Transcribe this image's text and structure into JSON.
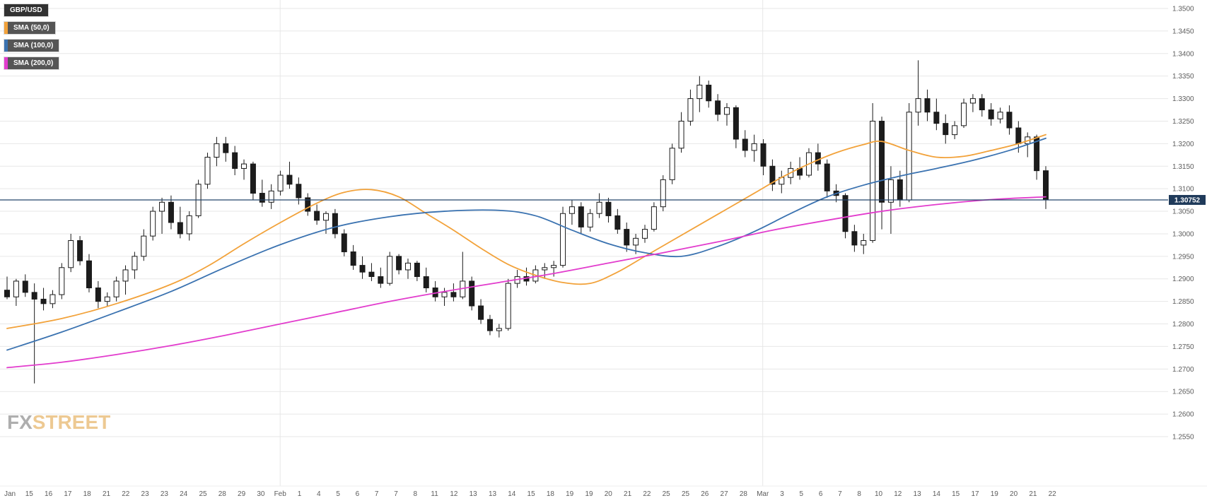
{
  "legend": {
    "instrument": "GBP/USD",
    "overlays": [
      {
        "label": "SMA (50,0)",
        "color": "#f2a23a"
      },
      {
        "label": "SMA (100,0)",
        "color": "#3a72b0"
      },
      {
        "label": "SMA (200,0)",
        "color": "#e23ccd"
      }
    ]
  },
  "watermark": {
    "fx": "FX",
    "street": "STREET"
  },
  "chart_data": {
    "type": "candlestick",
    "title": "GBP/USD daily candles with SMA(50), SMA(100), SMA(200)",
    "pair": "GBP/USD",
    "current_price": "1.30752",
    "price_line_color": "#24466b",
    "price_label_bg": "#1f3a5a",
    "grid_color": "#e7e7e7",
    "axis_text_color": "#5c5c5c",
    "up_color": "#ffffff",
    "down_color": "#1c1c1c",
    "candle_stroke": "#1a1a1a",
    "y_axis": {
      "min": 1.255,
      "max": 1.35,
      "tick_step": 0.005,
      "tick_labels": [
        "1.3500",
        "1.3450",
        "1.3400",
        "1.3350",
        "1.3300",
        "1.3250",
        "1.3200",
        "1.3150",
        "1.3100",
        "1.3050",
        "1.3000",
        "1.2950",
        "1.2900",
        "1.2850",
        "1.2800",
        "1.2750",
        "1.2700",
        "1.2650",
        "1.2600",
        "1.2550"
      ]
    },
    "x_axis": {
      "labels": [
        "Jan",
        "15",
        "16",
        "17",
        "18",
        "21",
        "22",
        "23",
        "23",
        "24",
        "25",
        "28",
        "29",
        "30",
        "Feb",
        "1",
        "4",
        "5",
        "6",
        "7",
        "7",
        "8",
        "11",
        "12",
        "13",
        "13",
        "14",
        "15",
        "18",
        "19",
        "19",
        "20",
        "21",
        "22",
        "25",
        "25",
        "26",
        "27",
        "28",
        "Mar",
        "3",
        "5",
        "6",
        "7",
        "8",
        "10",
        "12",
        "13",
        "14",
        "15",
        "17",
        "19",
        "20",
        "21",
        "22"
      ],
      "month_grid_indices": [
        14,
        39
      ]
    },
    "candles": [
      [
        1.2875,
        1.2905,
        1.2855,
        1.286
      ],
      [
        1.286,
        1.29,
        1.284,
        1.2895
      ],
      [
        1.2895,
        1.291,
        1.286,
        1.287
      ],
      [
        1.287,
        1.289,
        1.2668,
        1.2855
      ],
      [
        1.2855,
        1.288,
        1.283,
        1.2845
      ],
      [
        1.2845,
        1.2875,
        1.2835,
        1.2865
      ],
      [
        1.2865,
        1.2935,
        1.2855,
        1.2925
      ],
      [
        1.2925,
        1.3,
        1.2915,
        1.2985
      ],
      [
        1.2985,
        1.2995,
        1.293,
        1.294
      ],
      [
        1.294,
        1.2955,
        1.287,
        1.288
      ],
      [
        1.288,
        1.2895,
        1.2835,
        1.285
      ],
      [
        1.285,
        1.287,
        1.284,
        1.286
      ],
      [
        1.286,
        1.2905,
        1.285,
        1.2895
      ],
      [
        1.2895,
        1.293,
        1.2865,
        1.292
      ],
      [
        1.292,
        1.296,
        1.29,
        1.295
      ],
      [
        1.295,
        1.301,
        1.294,
        1.2995
      ],
      [
        1.2995,
        1.306,
        1.2985,
        1.305
      ],
      [
        1.305,
        1.308,
        1.3,
        1.307
      ],
      [
        1.307,
        1.3085,
        1.301,
        1.3025
      ],
      [
        1.3025,
        1.306,
        1.299,
        1.3
      ],
      [
        1.3,
        1.305,
        1.2985,
        1.304
      ],
      [
        1.304,
        1.312,
        1.3035,
        1.311
      ],
      [
        1.311,
        1.318,
        1.31,
        1.317
      ],
      [
        1.317,
        1.3215,
        1.315,
        1.32
      ],
      [
        1.32,
        1.3215,
        1.316,
        1.318
      ],
      [
        1.318,
        1.3195,
        1.313,
        1.3145
      ],
      [
        1.3145,
        1.3165,
        1.312,
        1.3155
      ],
      [
        1.3155,
        1.316,
        1.3075,
        1.309
      ],
      [
        1.309,
        1.312,
        1.306,
        1.307
      ],
      [
        1.307,
        1.311,
        1.3055,
        1.3095
      ],
      [
        1.3095,
        1.314,
        1.3085,
        1.313
      ],
      [
        1.313,
        1.316,
        1.31,
        1.311
      ],
      [
        1.311,
        1.3125,
        1.3065,
        1.308
      ],
      [
        1.308,
        1.309,
        1.304,
        1.305
      ],
      [
        1.305,
        1.3065,
        1.302,
        1.303
      ],
      [
        1.303,
        1.305,
        1.3,
        1.3045
      ],
      [
        1.3045,
        1.3055,
        1.299,
        1.3
      ],
      [
        1.3,
        1.301,
        1.295,
        1.296
      ],
      [
        1.296,
        1.2975,
        1.292,
        1.293
      ],
      [
        1.293,
        1.295,
        1.29,
        1.2915
      ],
      [
        1.2915,
        1.2935,
        1.2895,
        1.2905
      ],
      [
        1.2905,
        1.2925,
        1.288,
        1.289
      ],
      [
        1.289,
        1.296,
        1.2885,
        1.295
      ],
      [
        1.295,
        1.2955,
        1.291,
        1.292
      ],
      [
        1.292,
        1.2945,
        1.29,
        1.2935
      ],
      [
        1.2935,
        1.294,
        1.2895,
        1.2905
      ],
      [
        1.2905,
        1.2925,
        1.287,
        1.288
      ],
      [
        1.288,
        1.2895,
        1.285,
        1.286
      ],
      [
        1.286,
        1.288,
        1.284,
        1.287
      ],
      [
        1.287,
        1.289,
        1.285,
        1.286
      ],
      [
        1.286,
        1.296,
        1.2855,
        1.2895
      ],
      [
        1.2895,
        1.2905,
        1.283,
        1.284
      ],
      [
        1.284,
        1.2855,
        1.28,
        1.281
      ],
      [
        1.281,
        1.282,
        1.2775,
        1.2785
      ],
      [
        1.2785,
        1.28,
        1.277,
        1.279
      ],
      [
        1.279,
        1.29,
        1.2785,
        1.289
      ],
      [
        1.289,
        1.292,
        1.288,
        1.2905
      ],
      [
        1.2905,
        1.2925,
        1.2885,
        1.2895
      ],
      [
        1.2895,
        1.293,
        1.289,
        1.292
      ],
      [
        1.292,
        1.2935,
        1.29,
        1.2925
      ],
      [
        1.2925,
        1.294,
        1.2905,
        1.293
      ],
      [
        1.293,
        1.306,
        1.2925,
        1.3045
      ],
      [
        1.3045,
        1.3075,
        1.302,
        1.306
      ],
      [
        1.306,
        1.307,
        1.3,
        1.3015
      ],
      [
        1.3015,
        1.3055,
        1.3005,
        1.3045
      ],
      [
        1.3045,
        1.309,
        1.3035,
        1.307
      ],
      [
        1.307,
        1.308,
        1.3025,
        1.304
      ],
      [
        1.304,
        1.3055,
        1.3,
        1.301
      ],
      [
        1.301,
        1.3025,
        1.296,
        1.2975
      ],
      [
        1.2975,
        1.3,
        1.2955,
        1.299
      ],
      [
        1.299,
        1.302,
        1.298,
        1.301
      ],
      [
        1.301,
        1.307,
        1.3005,
        1.306
      ],
      [
        1.306,
        1.313,
        1.305,
        1.312
      ],
      [
        1.312,
        1.32,
        1.311,
        1.319
      ],
      [
        1.319,
        1.327,
        1.318,
        1.325
      ],
      [
        1.325,
        1.332,
        1.324,
        1.33
      ],
      [
        1.33,
        1.335,
        1.327,
        1.333
      ],
      [
        1.333,
        1.334,
        1.328,
        1.3295
      ],
      [
        1.3295,
        1.331,
        1.325,
        1.3265
      ],
      [
        1.3265,
        1.329,
        1.324,
        1.328
      ],
      [
        1.328,
        1.3285,
        1.319,
        1.321
      ],
      [
        1.321,
        1.323,
        1.317,
        1.3185
      ],
      [
        1.3185,
        1.322,
        1.316,
        1.32
      ],
      [
        1.32,
        1.321,
        1.313,
        1.315
      ],
      [
        1.315,
        1.3165,
        1.3095,
        1.311
      ],
      [
        1.311,
        1.314,
        1.309,
        1.3125
      ],
      [
        1.3125,
        1.316,
        1.311,
        1.3145
      ],
      [
        1.3145,
        1.317,
        1.312,
        1.313
      ],
      [
        1.313,
        1.319,
        1.3125,
        1.318
      ],
      [
        1.318,
        1.32,
        1.314,
        1.3155
      ],
      [
        1.3155,
        1.3165,
        1.308,
        1.3095
      ],
      [
        1.3095,
        1.311,
        1.307,
        1.3085
      ],
      [
        1.3085,
        1.309,
        1.299,
        1.3005
      ],
      [
        1.3005,
        1.302,
        1.296,
        1.2975
      ],
      [
        1.2975,
        1.3,
        1.2955,
        1.2985
      ],
      [
        1.2985,
        1.329,
        1.298,
        1.325
      ],
      [
        1.325,
        1.326,
        1.301,
        1.307
      ],
      [
        1.307,
        1.315,
        1.3,
        1.312
      ],
      [
        1.312,
        1.314,
        1.306,
        1.3075
      ],
      [
        1.3075,
        1.329,
        1.307,
        1.327
      ],
      [
        1.327,
        1.3385,
        1.324,
        1.33
      ],
      [
        1.33,
        1.332,
        1.325,
        1.327
      ],
      [
        1.327,
        1.33,
        1.323,
        1.3245
      ],
      [
        1.3245,
        1.3265,
        1.32,
        1.322
      ],
      [
        1.322,
        1.325,
        1.321,
        1.324
      ],
      [
        1.324,
        1.33,
        1.3235,
        1.329
      ],
      [
        1.329,
        1.331,
        1.327,
        1.33
      ],
      [
        1.33,
        1.331,
        1.326,
        1.3275
      ],
      [
        1.3275,
        1.329,
        1.324,
        1.3255
      ],
      [
        1.3255,
        1.328,
        1.3245,
        1.327
      ],
      [
        1.327,
        1.3285,
        1.322,
        1.3235
      ],
      [
        1.3235,
        1.325,
        1.318,
        1.32
      ],
      [
        1.32,
        1.3225,
        1.317,
        1.3215
      ],
      [
        1.3215,
        1.322,
        1.312,
        1.314
      ],
      [
        1.314,
        1.315,
        1.3055,
        1.30752
      ]
    ],
    "series": [
      {
        "name": "SMA (50,0)",
        "color": "#f2a23a",
        "points": [
          [
            0,
            1.279
          ],
          [
            6,
            1.2812
          ],
          [
            12,
            1.2845
          ],
          [
            18,
            1.2888
          ],
          [
            22,
            1.2928
          ],
          [
            26,
            1.2978
          ],
          [
            30,
            1.3025
          ],
          [
            34,
            1.3068
          ],
          [
            37,
            1.3092
          ],
          [
            40,
            1.3098
          ],
          [
            43,
            1.3082
          ],
          [
            46,
            1.3045
          ],
          [
            49,
            1.3008
          ],
          [
            52,
            1.2968
          ],
          [
            55,
            1.2932
          ],
          [
            58,
            1.2908
          ],
          [
            61,
            1.2892
          ],
          [
            64,
            1.289
          ],
          [
            67,
            1.2915
          ],
          [
            70,
            1.295
          ],
          [
            73,
            1.2985
          ],
          [
            76,
            1.302
          ],
          [
            79,
            1.3055
          ],
          [
            82,
            1.309
          ],
          [
            85,
            1.3125
          ],
          [
            88,
            1.3155
          ],
          [
            91,
            1.318
          ],
          [
            94,
            1.3198
          ],
          [
            96,
            1.3205
          ],
          [
            99,
            1.3185
          ],
          [
            102,
            1.317
          ],
          [
            105,
            1.3172
          ],
          [
            108,
            1.3185
          ],
          [
            111,
            1.32
          ],
          [
            114,
            1.322
          ]
        ]
      },
      {
        "name": "SMA (100,0)",
        "color": "#3a72b0",
        "points": [
          [
            0,
            1.2742
          ],
          [
            6,
            1.2782
          ],
          [
            12,
            1.2826
          ],
          [
            18,
            1.2872
          ],
          [
            24,
            1.2926
          ],
          [
            30,
            1.2976
          ],
          [
            36,
            1.3015
          ],
          [
            42,
            1.3038
          ],
          [
            48,
            1.305
          ],
          [
            54,
            1.3052
          ],
          [
            58,
            1.304
          ],
          [
            62,
            1.3008
          ],
          [
            66,
            1.2978
          ],
          [
            70,
            1.2958
          ],
          [
            74,
            1.295
          ],
          [
            78,
            1.2972
          ],
          [
            82,
            1.3005
          ],
          [
            86,
            1.3045
          ],
          [
            90,
            1.3082
          ],
          [
            94,
            1.3108
          ],
          [
            98,
            1.3128
          ],
          [
            102,
            1.3145
          ],
          [
            106,
            1.3163
          ],
          [
            110,
            1.3185
          ],
          [
            114,
            1.3212
          ]
        ]
      },
      {
        "name": "SMA (200,0)",
        "color": "#e23ccd",
        "points": [
          [
            0,
            1.2703
          ],
          [
            6,
            1.2715
          ],
          [
            12,
            1.2732
          ],
          [
            18,
            1.2752
          ],
          [
            24,
            1.2775
          ],
          [
            30,
            1.28
          ],
          [
            36,
            1.2825
          ],
          [
            42,
            1.285
          ],
          [
            48,
            1.2872
          ],
          [
            54,
            1.2892
          ],
          [
            60,
            1.2912
          ],
          [
            66,
            1.2935
          ],
          [
            72,
            1.2958
          ],
          [
            78,
            1.2982
          ],
          [
            84,
            1.3008
          ],
          [
            90,
            1.303
          ],
          [
            96,
            1.305
          ],
          [
            102,
            1.3065
          ],
          [
            108,
            1.3076
          ],
          [
            114,
            1.3082
          ]
        ]
      }
    ]
  }
}
